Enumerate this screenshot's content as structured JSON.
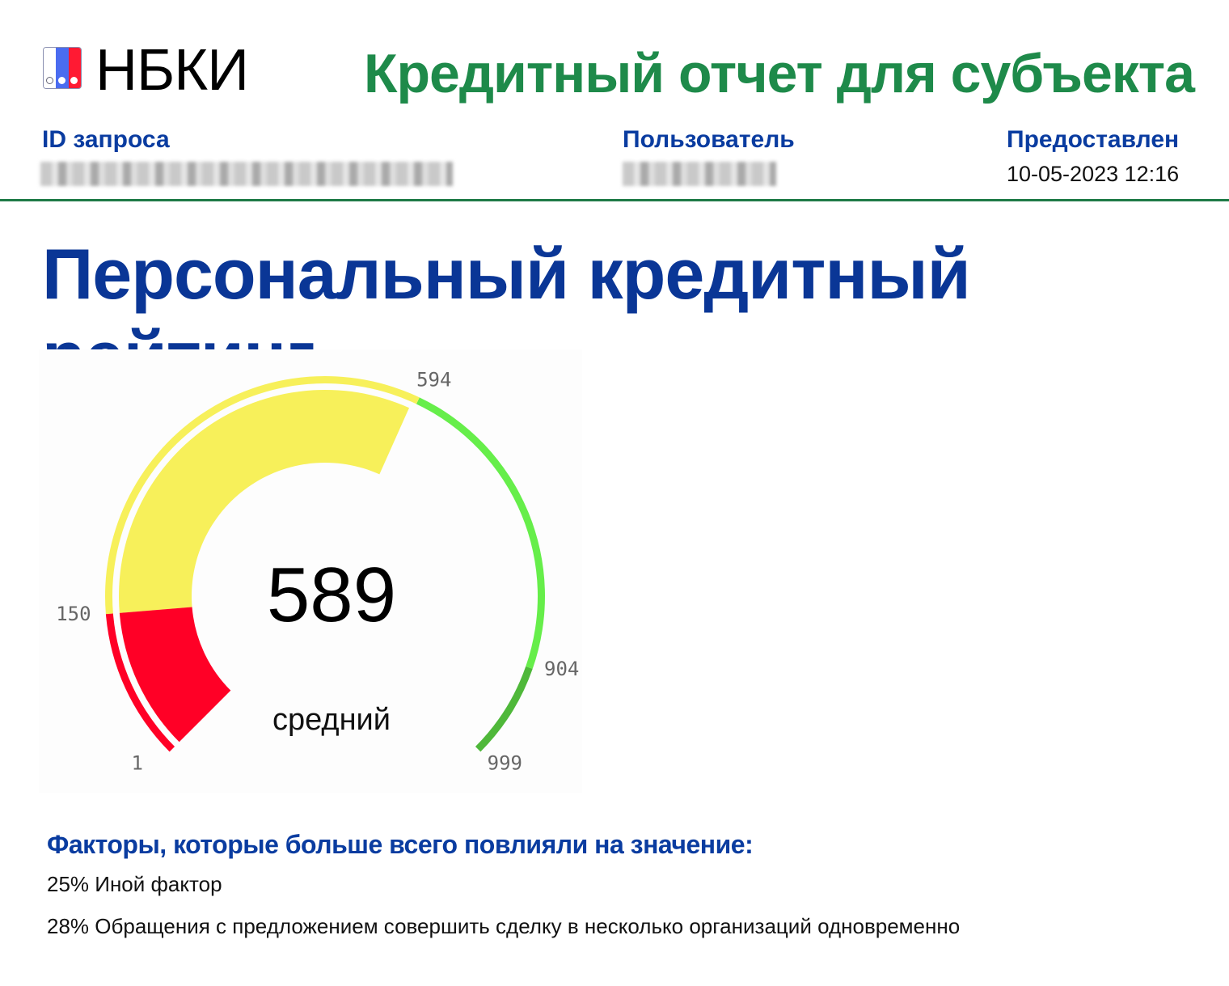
{
  "header": {
    "logo_text": "НБКИ",
    "report_title": "Кредитный отчет для субъекта",
    "request_id_label": "ID запроса",
    "user_label": "Пользователь",
    "provided_label": "Предоставлен",
    "provided_value": "10-05-2023 12:16"
  },
  "rating": {
    "title": "Персональный кредитный рейтинг",
    "score": "589",
    "category": "средний",
    "score_value": 589,
    "min": 1,
    "max": 999,
    "tick_labels": [
      "1",
      "150",
      "594",
      "904",
      "999"
    ],
    "zones": [
      {
        "from": 1,
        "to": 150,
        "color": "#ff0026"
      },
      {
        "from": 150,
        "to": 594,
        "color": "#f7f05a"
      },
      {
        "from": 594,
        "to": 904,
        "color": "#66ee4a"
      },
      {
        "from": 904,
        "to": 999,
        "color": "#4fb83a"
      }
    ]
  },
  "factors": {
    "title": "Факторы, которые больше всего повлияли на значение:",
    "items": [
      "25% Иной фактор",
      "28% Обращения с предложением совершить сделку в несколько организаций одновременно"
    ]
  },
  "colors": {
    "brand_green": "#1e8a4a",
    "brand_blue": "#0a3696"
  }
}
